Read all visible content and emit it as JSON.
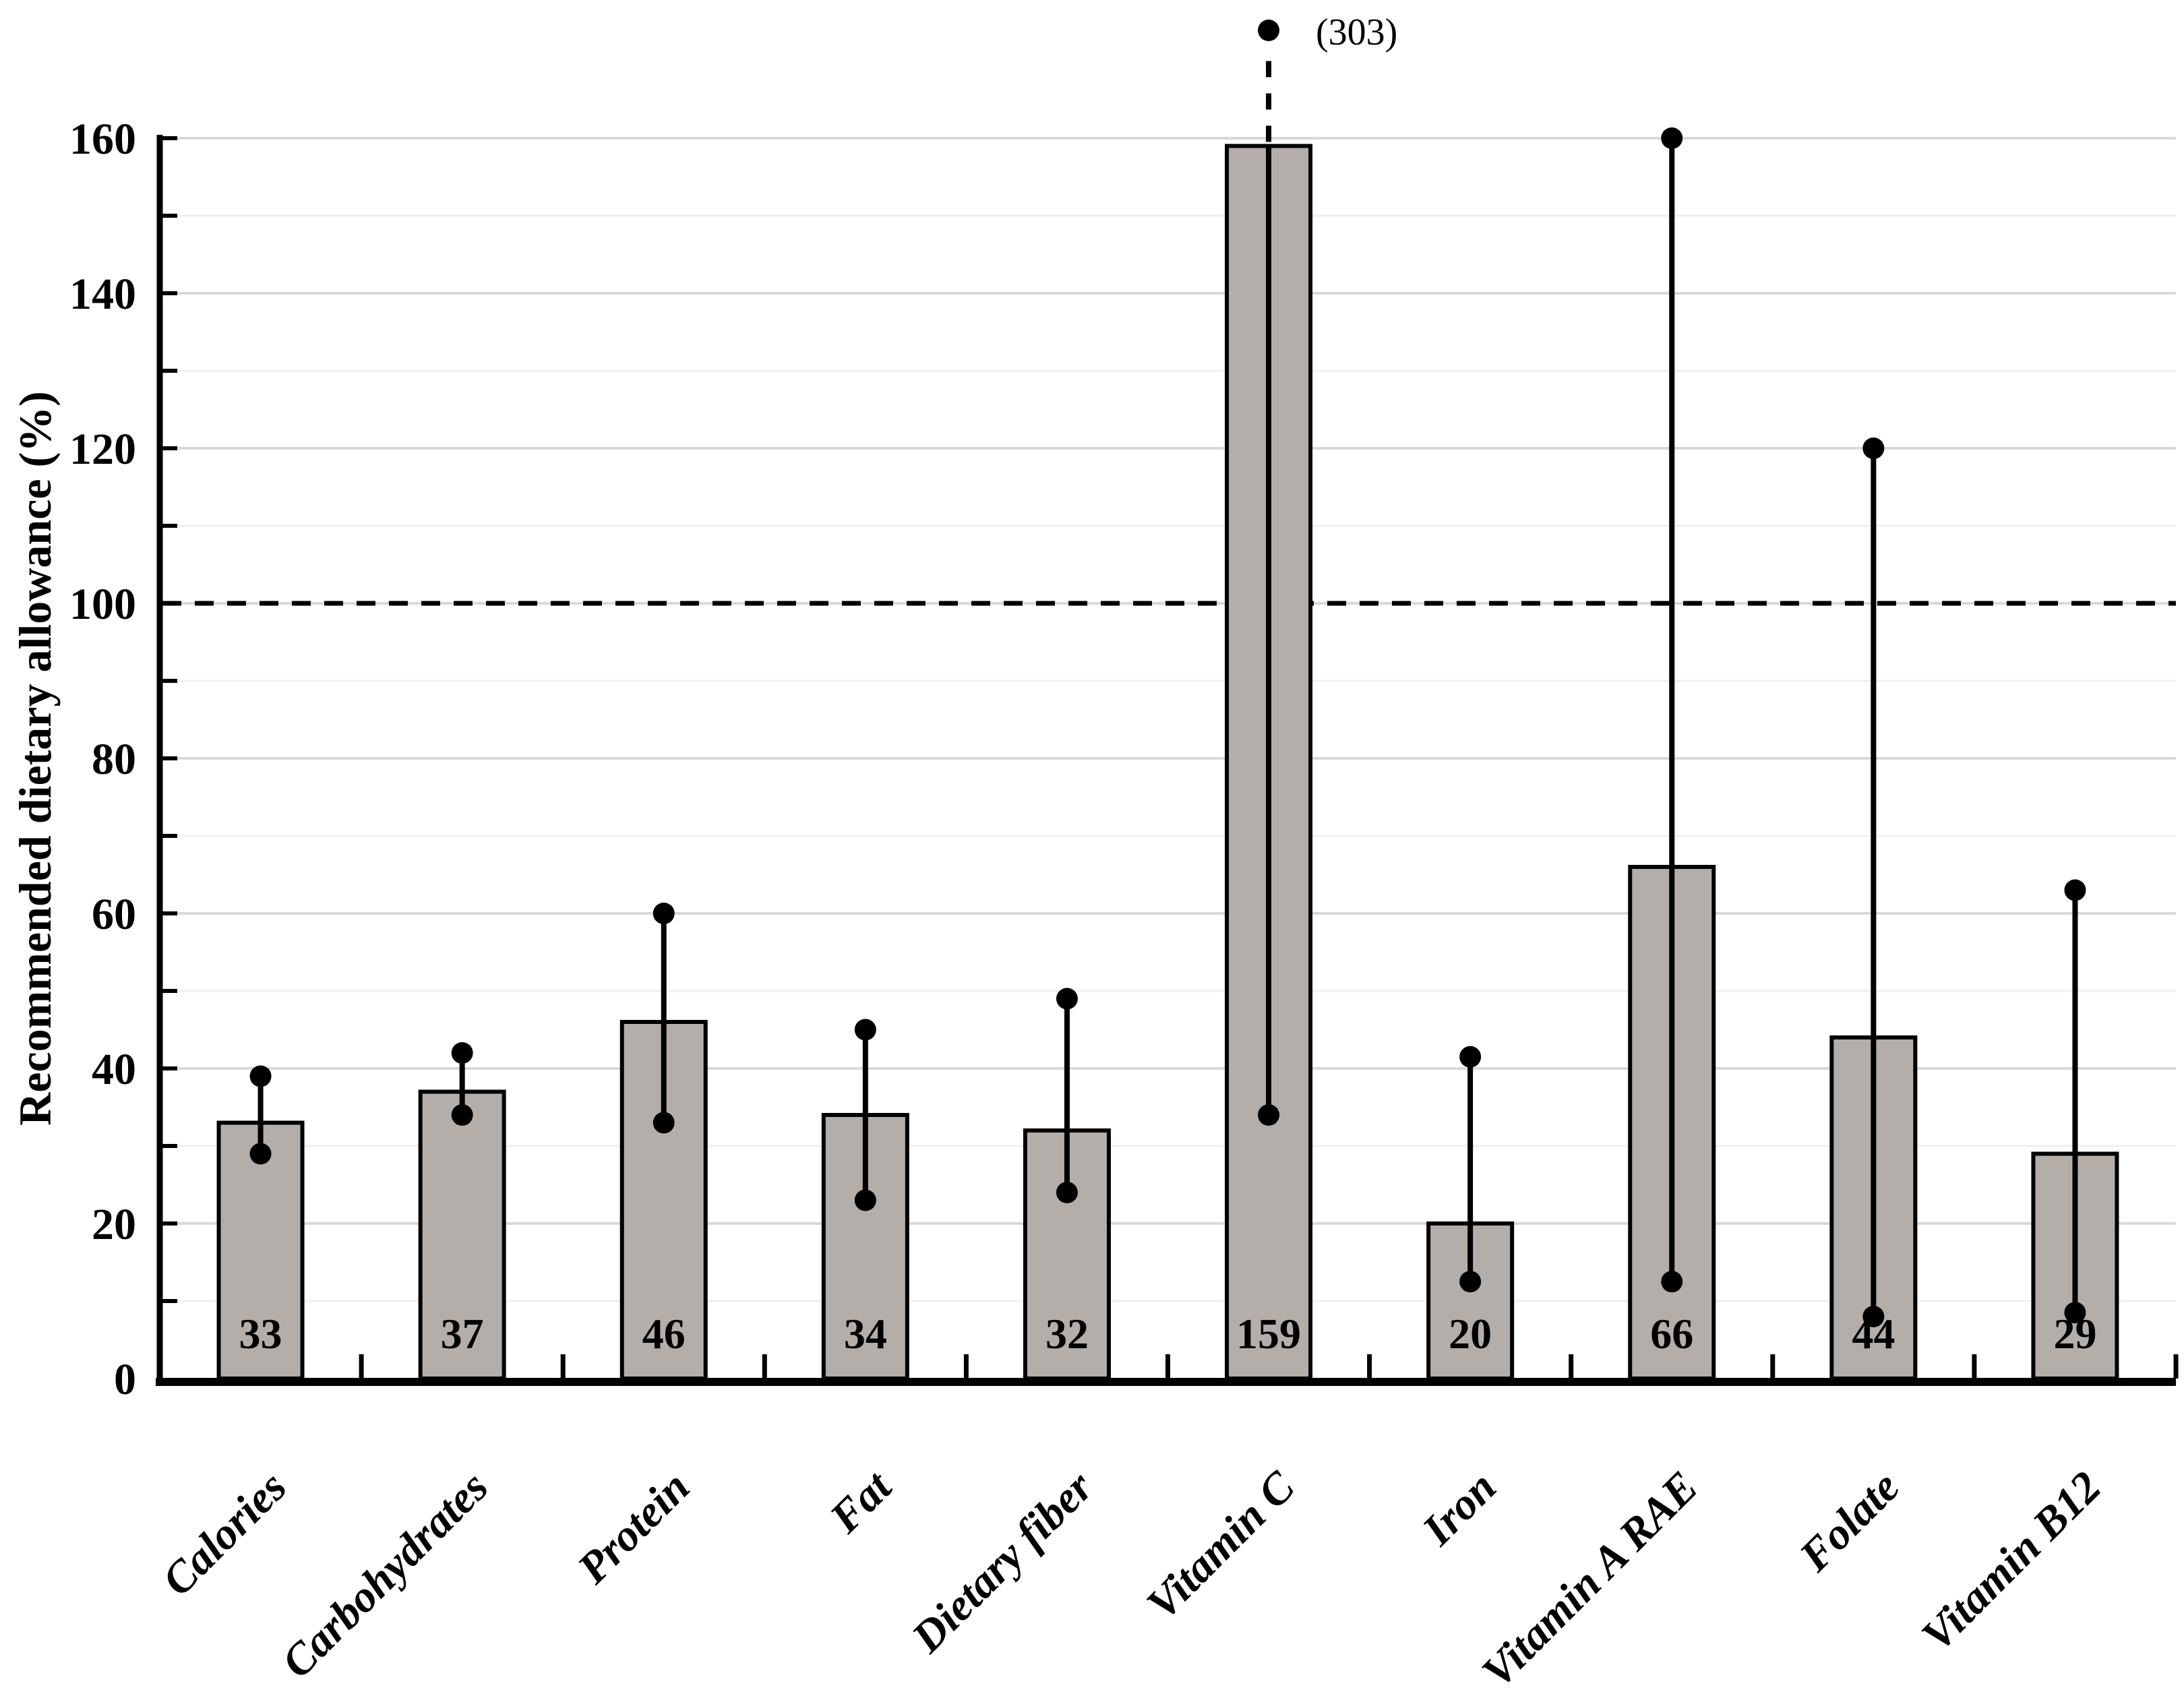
{
  "chart_data": {
    "type": "bar",
    "title": "",
    "xlabel": "",
    "ylabel": "Recommended dietary allowance (%)",
    "ylim": [
      0,
      160
    ],
    "y_tick_step": 20,
    "y_minor_step": 10,
    "grid": true,
    "legend": "none",
    "y_tick_labels": [
      "0",
      "20",
      "40",
      "60",
      "80",
      "100",
      "120",
      "140",
      "160"
    ],
    "reference_line": {
      "value": 100,
      "style": "dashed",
      "color": "#000000"
    },
    "categories": [
      "Calories",
      "Carbohydrates",
      "Protein",
      "Fat",
      "Dietary fiber",
      "Vitamin C",
      "Iron",
      "Vitamin A RAE",
      "Folate",
      "Vitamin B12"
    ],
    "values": [
      33,
      37,
      46,
      34,
      32,
      159,
      20,
      66,
      44,
      29
    ],
    "value_labels": [
      "33",
      "37",
      "46",
      "34",
      "32",
      "159",
      "20",
      "66",
      "44",
      "29"
    ],
    "ranges_min": [
      29,
      34,
      33,
      23,
      24,
      34,
      12.5,
      12.5,
      8,
      8.5
    ],
    "ranges_max": [
      39,
      42,
      60,
      45,
      49,
      303,
      41.5,
      160,
      120,
      63
    ],
    "truncated_whisker": {
      "index": 5,
      "category": "Vitamin C",
      "true_max": 303,
      "label": "(303)"
    },
    "colors": {
      "bar_fill": "#b3aeaa",
      "bar_border": "#000000",
      "error_bar": "#000000",
      "axis": "#000000",
      "major_gridline": "#d9d9d9",
      "minor_gridline": "#efefef",
      "background": "#ffffff"
    }
  }
}
